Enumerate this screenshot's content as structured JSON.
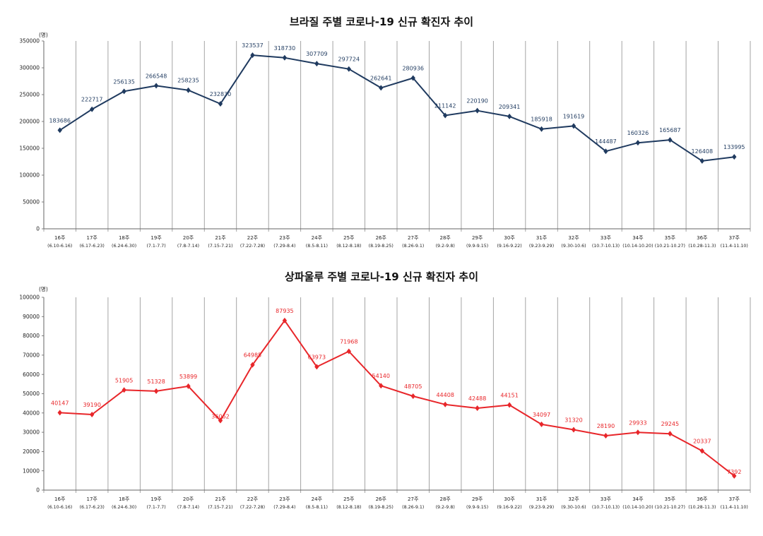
{
  "chart_data": [
    {
      "type": "line",
      "title": "브라질 주별 코로나-19 신규 확진자 추이",
      "unit_label": "(명)",
      "ylim": [
        0,
        350000
      ],
      "yticks": [
        0,
        50000,
        100000,
        150000,
        200000,
        250000,
        300000,
        350000
      ],
      "categories": [
        "16주",
        "17주",
        "18주",
        "19주",
        "20주",
        "21주",
        "22주",
        "23주",
        "24주",
        "25주",
        "26주",
        "27주",
        "28주",
        "29주",
        "30주",
        "31주",
        "32주",
        "33주",
        "34주",
        "35주",
        "36주",
        "37주"
      ],
      "date_ranges": [
        "(6.10-6.16)",
        "(6.17-6.23)",
        "(6.24-6.30)",
        "(7.1-7.7)",
        "(7.8-7.14)",
        "(7.15-7.21)",
        "(7.22-7.28)",
        "(7.29-8.4)",
        "(8.5-8.11)",
        "(8.12-8.18)",
        "(8.19-8.25)",
        "(8.26-9.1)",
        "(9.2-9.8)",
        "(9.9-9.15)",
        "(9.16-9.22)",
        "(9.23-9.29)",
        "(9.30-10.6)",
        "(10.7-10.13)",
        "(10.14-10.20)",
        "(10.21-10.27)",
        "(10.28-11.3)",
        "(11.4-11.10)"
      ],
      "values": [
        183686,
        222717,
        256135,
        266548,
        258235,
        232830,
        323537,
        318730,
        307709,
        297724,
        262641,
        280936,
        211142,
        220190,
        209341,
        185918,
        191619,
        144487,
        160326,
        165687,
        126408,
        133995
      ],
      "color": "#1f3a5f",
      "grid": "vertical category separators"
    },
    {
      "type": "line",
      "title": "상파울루 주별 코로나-19 신규 확진자 추이",
      "unit_label": "(명)",
      "ylim": [
        0,
        100000
      ],
      "yticks": [
        0,
        10000,
        20000,
        30000,
        40000,
        50000,
        60000,
        70000,
        80000,
        90000,
        100000
      ],
      "categories": [
        "16주",
        "17주",
        "18주",
        "19주",
        "20주",
        "21주",
        "22주",
        "23주",
        "24주",
        "25주",
        "26주",
        "27주",
        "28주",
        "29주",
        "30주",
        "31주",
        "32주",
        "33주",
        "34주",
        "35주",
        "36주",
        "37주"
      ],
      "date_ranges": [
        "(6.10-6.16)",
        "(6.17-6.23)",
        "(6.24-6.30)",
        "(7.1-7.7)",
        "(7.8-7.14)",
        "(7.15-7.21)",
        "(7.22-7.28)",
        "(7.29-8.4)",
        "(8.5-8.11)",
        "(8.12-8.18)",
        "(8.19-8.25)",
        "(8.26-9.1)",
        "(9.2-9.8)",
        "(9.9-9.15)",
        "(9.16-9.22)",
        "(9.23-9.29)",
        "(9.30-10.6)",
        "(10.7-10.13)",
        "(10.14-10.20)",
        "(10.21-10.27)",
        "(10.28-11.3)",
        "(11.4-11.10)"
      ],
      "values": [
        40147,
        39190,
        51905,
        51328,
        53899,
        36062,
        64985,
        87935,
        63973,
        71968,
        54140,
        48705,
        44408,
        42488,
        44151,
        34097,
        31320,
        28190,
        29933,
        29245,
        20337,
        7392
      ],
      "color": "#e8262a",
      "grid": "vertical category separators"
    }
  ]
}
